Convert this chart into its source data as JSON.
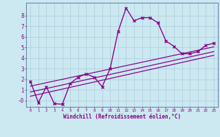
{
  "xlabel": "Windchill (Refroidissement éolien,°C)",
  "background_color": "#cce8f0",
  "grid_color": "#aaccdd",
  "line_color": "#880088",
  "spine_color": "#6688aa",
  "xlim": [
    -0.5,
    23.5
  ],
  "ylim": [
    -0.6,
    9.2
  ],
  "xticks": [
    0,
    1,
    2,
    3,
    4,
    5,
    6,
    7,
    8,
    9,
    10,
    11,
    12,
    13,
    14,
    15,
    16,
    17,
    18,
    19,
    20,
    21,
    22,
    23
  ],
  "yticks": [
    0,
    1,
    2,
    3,
    4,
    5,
    6,
    7,
    8
  ],
  "ytick_labels": [
    "-0",
    "1",
    "2",
    "3",
    "4",
    "5",
    "6",
    "7",
    "8"
  ],
  "curve1_x": [
    0,
    1,
    2,
    3,
    4,
    5,
    6,
    7,
    8,
    9,
    10,
    11,
    12,
    13,
    14,
    15,
    16,
    17,
    18,
    19,
    20,
    21,
    22,
    23
  ],
  "curve1_y": [
    1.8,
    -0.2,
    1.3,
    -0.3,
    -0.35,
    1.6,
    2.2,
    2.5,
    2.2,
    1.3,
    3.0,
    6.5,
    8.7,
    7.5,
    7.8,
    7.8,
    7.3,
    5.6,
    5.1,
    4.4,
    4.4,
    4.6,
    5.2,
    5.4
  ],
  "line1_x": [
    0,
    23
  ],
  "line1_y": [
    0.8,
    4.6
  ],
  "line2_x": [
    0,
    23
  ],
  "line2_y": [
    1.35,
    5.05
  ],
  "line3_x": [
    0,
    23
  ],
  "line3_y": [
    0.4,
    4.25
  ]
}
